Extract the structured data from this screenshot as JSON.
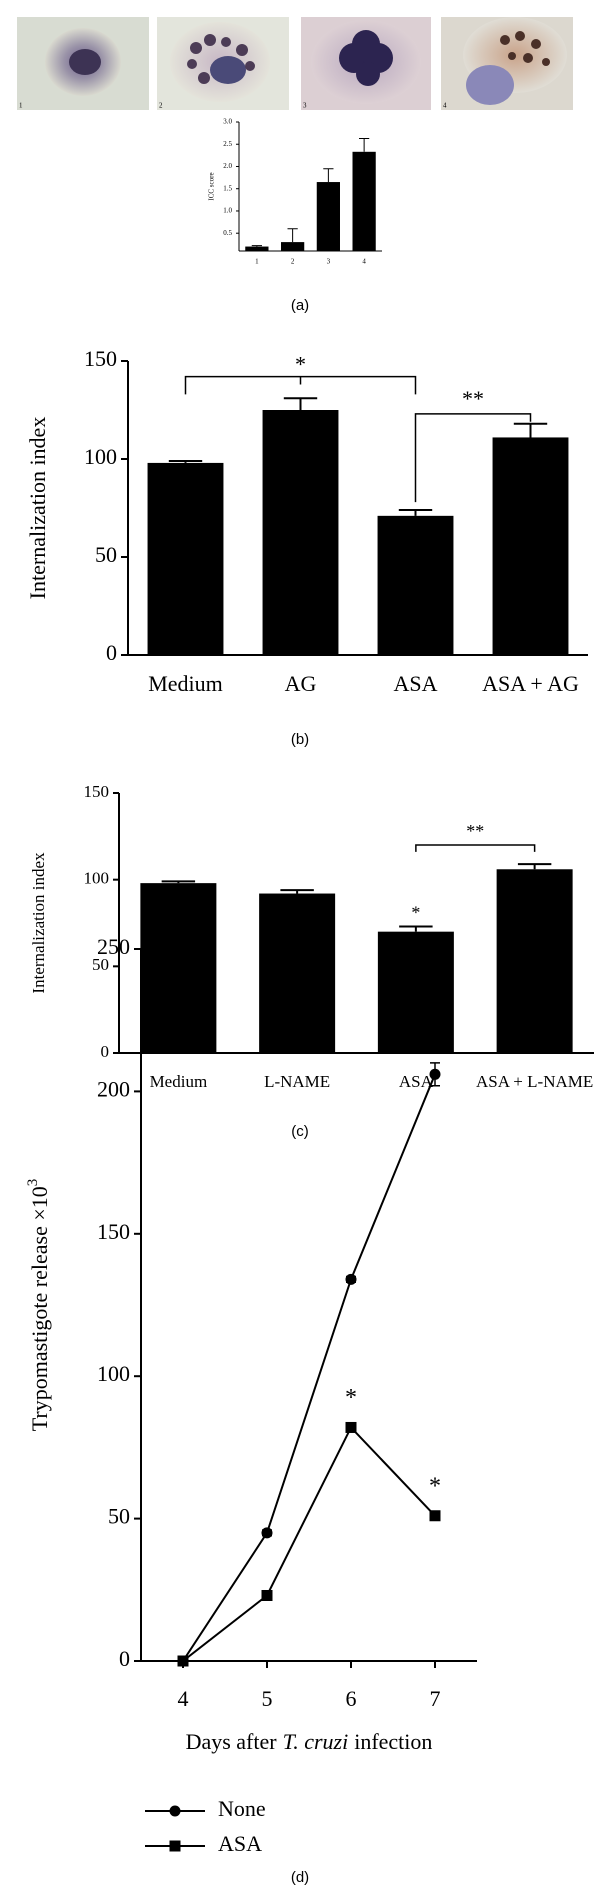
{
  "chart_data": [
    {
      "type": "bar",
      "image_labels": [
        "1",
        "2",
        "3",
        "4"
      ],
      "ylabel": "ICC score",
      "categories": [
        "1",
        "2",
        "3",
        "4"
      ],
      "values": [
        0.2,
        0.3,
        1.65,
        2.33
      ],
      "errors": [
        0.02,
        0.3,
        0.3,
        0.3
      ],
      "color": "#000000",
      "ylim": [
        0.1,
        3.0
      ],
      "yticks": [
        0.5,
        {
          "value": 1,
          "label": "1.0"
        },
        1.5,
        {
          "value": 2,
          "label": "2.0"
        },
        2.5,
        {
          "value": 3,
          "label": "3.0"
        }
      ],
      "caption": "(a)"
    },
    {
      "type": "bar",
      "ylabel": "Internalization index",
      "categories": [
        "Medium",
        "AG",
        "ASA",
        "ASA + AG"
      ],
      "values": [
        98,
        125,
        71,
        111
      ],
      "errors": [
        1,
        6,
        3,
        7
      ],
      "color": "#000000",
      "ylim": [
        0,
        150
      ],
      "yticks": [
        0,
        50,
        100,
        150
      ],
      "annotations": [
        "*",
        "**"
      ],
      "caption": "(b)"
    },
    {
      "type": "bar",
      "ylabel": "Internalization index",
      "categories": [
        "Medium",
        "L-NAME",
        "ASA",
        "ASA + L-NAME"
      ],
      "values": [
        98,
        92,
        70,
        106
      ],
      "errors": [
        1,
        2,
        3,
        3
      ],
      "color": "#000000",
      "ylim": [
        0,
        150
      ],
      "yticks": [
        0,
        50,
        100,
        150
      ],
      "annotations": [
        "*",
        "**"
      ],
      "caption": "(c)"
    },
    {
      "type": "line",
      "ylabel": "Trypomastigote release ×10",
      "ylabel_sup": "3",
      "xlabel": [
        "Days after",
        "T. cruzi",
        "infection"
      ],
      "x": [
        4,
        5,
        6,
        7
      ],
      "xlim": [
        3.5,
        7.5
      ],
      "xticks": [
        4,
        5,
        6,
        7
      ],
      "ylim": [
        0,
        250
      ],
      "yticks": [
        0,
        50,
        100,
        150,
        200,
        250
      ],
      "series": [
        {
          "name": "None",
          "color": "#000000",
          "marker": "circle",
          "values": [
            0,
            45,
            134,
            206
          ],
          "errors": [
            0,
            1,
            1,
            4
          ]
        },
        {
          "name": "ASA",
          "color": "#000000",
          "marker": "square",
          "values": [
            0,
            23,
            82,
            51
          ],
          "errors": [
            0,
            1,
            1,
            1
          ]
        }
      ],
      "annotations": [
        "*",
        "*"
      ],
      "caption": "(d)"
    }
  ]
}
